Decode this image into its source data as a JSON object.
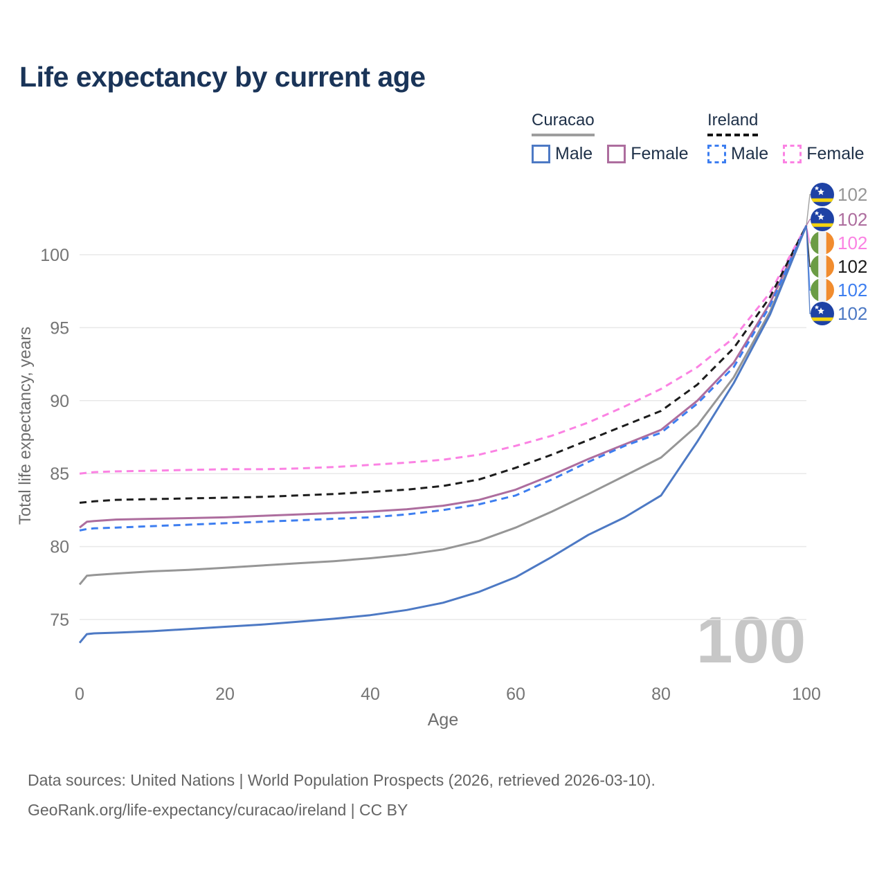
{
  "title": "Life expectancy by current age",
  "legend": {
    "groups": [
      {
        "country": "Curacao",
        "underline_style": "solid",
        "underline_color": "#9e9e9e",
        "items": [
          {
            "label": "Male",
            "color": "#4d79c4",
            "dashed": false
          },
          {
            "label": "Female",
            "color": "#ad6d9e",
            "dashed": false
          }
        ]
      },
      {
        "country": "Ireland",
        "underline_style": "dashed",
        "underline_color": "#141414",
        "items": [
          {
            "label": "Male",
            "color": "#3d7ef0",
            "dashed": true
          },
          {
            "label": "Female",
            "color": "#fb82e3",
            "dashed": true
          }
        ]
      }
    ]
  },
  "chart_data": {
    "type": "line",
    "title": "Life expectancy by current age",
    "xlabel": "Age",
    "ylabel": "Total life expectancy, years",
    "xlim": [
      0,
      100
    ],
    "ylim": [
      73,
      103
    ],
    "x_ticks": [
      0,
      20,
      40,
      60,
      80,
      100
    ],
    "y_ticks": [
      75,
      80,
      85,
      90,
      95,
      100
    ],
    "grid": "horizontal-only",
    "grid_color": "#e8e8e8",
    "tick_color": "#757575",
    "axis_title_color": "#6e6e6e",
    "watermark": {
      "text": "100",
      "color": "#c7c7c7"
    },
    "x": [
      0,
      1,
      2,
      5,
      10,
      15,
      20,
      25,
      30,
      35,
      40,
      45,
      50,
      55,
      60,
      65,
      70,
      75,
      80,
      85,
      90,
      95,
      100
    ],
    "series": [
      {
        "name": "Curacao — Both sexes",
        "country": "curacao",
        "color": "#969696",
        "dashed": false,
        "end_label": "102",
        "values": [
          77.4,
          78.0,
          78.05,
          78.15,
          78.3,
          78.4,
          78.55,
          78.7,
          78.85,
          79.0,
          79.2,
          79.45,
          79.8,
          80.4,
          81.3,
          82.4,
          83.6,
          84.85,
          86.1,
          88.3,
          91.6,
          96.1,
          102
        ]
      },
      {
        "name": "Curacao — Female",
        "country": "curacao",
        "color": "#ad6d9e",
        "dashed": false,
        "end_label": "102",
        "values": [
          81.3,
          81.7,
          81.75,
          81.85,
          81.9,
          81.95,
          82.0,
          82.1,
          82.2,
          82.3,
          82.4,
          82.55,
          82.8,
          83.2,
          83.9,
          84.9,
          86.0,
          87.0,
          88.0,
          90.0,
          92.6,
          96.7,
          102
        ]
      },
      {
        "name": "Ireland — Female",
        "country": "ireland",
        "color": "#fb82e3",
        "dashed": true,
        "end_label": "102",
        "values": [
          85.0,
          85.05,
          85.1,
          85.15,
          85.2,
          85.25,
          85.3,
          85.3,
          85.35,
          85.45,
          85.6,
          85.75,
          85.95,
          86.3,
          86.9,
          87.6,
          88.5,
          89.6,
          90.8,
          92.3,
          94.3,
          97.4,
          102
        ]
      },
      {
        "name": "Ireland — Both sexes",
        "country": "ireland",
        "color": "#1c1c1c",
        "dashed": true,
        "end_label": "102",
        "values": [
          83.0,
          83.05,
          83.1,
          83.2,
          83.25,
          83.3,
          83.35,
          83.4,
          83.5,
          83.6,
          83.75,
          83.9,
          84.15,
          84.6,
          85.4,
          86.3,
          87.3,
          88.3,
          89.3,
          91.1,
          93.6,
          97.1,
          102
        ]
      },
      {
        "name": "Ireland — Male",
        "country": "ireland",
        "color": "#3d7ef0",
        "dashed": true,
        "end_label": "102",
        "values": [
          81.1,
          81.2,
          81.25,
          81.3,
          81.4,
          81.5,
          81.6,
          81.7,
          81.8,
          81.9,
          82.0,
          82.2,
          82.5,
          82.9,
          83.5,
          84.6,
          85.8,
          86.9,
          87.8,
          89.8,
          92.3,
          96.5,
          102
        ]
      },
      {
        "name": "Curacao — Male",
        "country": "curacao",
        "color": "#4d79c4",
        "dashed": false,
        "end_label": "102",
        "values": [
          73.4,
          74.0,
          74.05,
          74.1,
          74.2,
          74.35,
          74.5,
          74.65,
          74.85,
          75.05,
          75.3,
          75.65,
          76.15,
          76.9,
          77.9,
          79.3,
          80.8,
          82.0,
          83.5,
          87.2,
          91.2,
          95.9,
          102
        ]
      }
    ],
    "flag_colors": {
      "curacao": {
        "field": "#1e42a5",
        "stripe": "#f3d410",
        "star": "#ffffff"
      },
      "ireland": {
        "green": "#6b9c44",
        "white": "#f2f2f2",
        "orange": "#f18c2e"
      }
    }
  },
  "footer": {
    "line1": "Data sources: United Nations | World Population Prospects (2026, retrieved 2026-03-10).",
    "line2": "GeoRank.org/life-expectancy/curacao/ireland | CC BY"
  }
}
